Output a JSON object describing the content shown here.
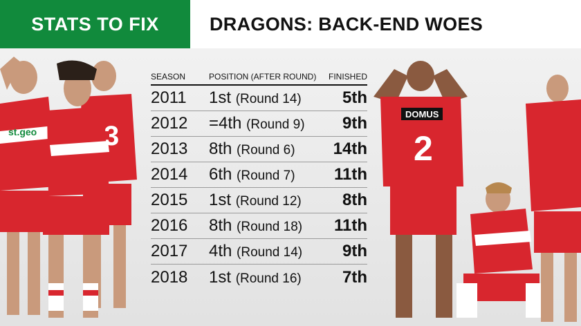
{
  "header": {
    "left_title": "STATS TO FIX",
    "right_title": "DRAGONS: BACK-END WOES"
  },
  "colors": {
    "green": "#118a3c",
    "jersey_red": "#d8262e",
    "white": "#ffffff"
  },
  "table": {
    "headers": {
      "season": "SEASON",
      "position": "POSITION (AFTER ROUND)",
      "finished": "FINISHED"
    },
    "rows": [
      {
        "season": "2011",
        "position": "1st",
        "round": "(Round 14)",
        "finished": "5th"
      },
      {
        "season": "2012",
        "position": "=4th",
        "round": "(Round 9)",
        "finished": "9th"
      },
      {
        "season": "2013",
        "position": "8th",
        "round": "(Round 6)",
        "finished": "14th"
      },
      {
        "season": "2014",
        "position": "6th",
        "round": "(Round 7)",
        "finished": "11th"
      },
      {
        "season": "2015",
        "position": "1st",
        "round": "(Round 12)",
        "finished": "8th"
      },
      {
        "season": "2016",
        "position": "8th",
        "round": "(Round 18)",
        "finished": "11th"
      },
      {
        "season": "2017",
        "position": "4th",
        "round": "(Round 14)",
        "finished": "9th"
      },
      {
        "season": "2018",
        "position": "1st",
        "round": "(Round 16)",
        "finished": "7th"
      }
    ]
  },
  "photo": {
    "jersey_number_left": "3",
    "jersey_number_right": "2",
    "sponsor_left": "st.geo",
    "sponsor_right": "DOMUS"
  }
}
